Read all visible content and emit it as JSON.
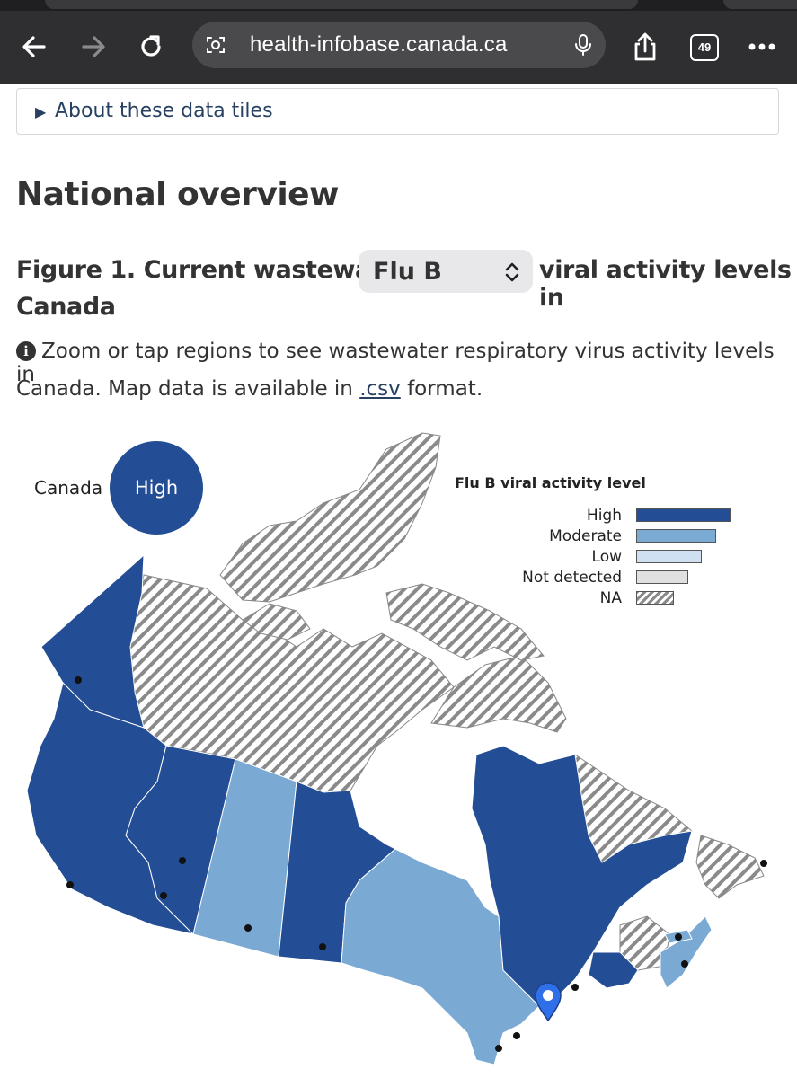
{
  "browser": {
    "url": "health-infobase.canada.ca",
    "tab_count": "49",
    "icons": [
      "back-arrow-icon",
      "forward-arrow-icon",
      "reload-icon",
      "site-settings-icon",
      "microphone-icon",
      "share-icon",
      "tabs-icon",
      "more-icon"
    ]
  },
  "details_toggle": {
    "label": "About these data tiles"
  },
  "heading": "National overview",
  "figure": {
    "title_prefix": "Figure 1. Current wastewater",
    "selected_virus": "Flu B",
    "title_suffix_1": "viral activity levels in",
    "title_suffix_2": "Canada",
    "info_text_1": "Zoom or tap regions to see wastewater respiratory virus activity levels in",
    "info_text_2_before": "Canada. Map data is available in ",
    "info_link": ".csv",
    "info_text_2_after": " format."
  },
  "map": {
    "national": {
      "label": "Canada",
      "level": "High"
    },
    "legend": {
      "title": "Flu B viral activity level",
      "items": [
        {
          "label": "High",
          "color": "#234e96"
        },
        {
          "label": "Moderate",
          "color": "#7aaad3"
        },
        {
          "label": "Low",
          "color": "#cfe0f3"
        },
        {
          "label": "Not detected",
          "color": "#e0e0e0"
        },
        {
          "label": "NA",
          "color": "hatch"
        }
      ]
    },
    "regions": [
      {
        "name": "Yukon",
        "level": "High"
      },
      {
        "name": "British Columbia",
        "level": "High"
      },
      {
        "name": "Alberta",
        "level": "High"
      },
      {
        "name": "Saskatchewan",
        "level": "Moderate"
      },
      {
        "name": "Manitoba",
        "level": "High"
      },
      {
        "name": "Ontario",
        "level": "Moderate"
      },
      {
        "name": "Quebec",
        "level": "High"
      },
      {
        "name": "New Brunswick",
        "level": "High"
      },
      {
        "name": "Nova Scotia",
        "level": "Moderate"
      },
      {
        "name": "Prince Edward Island",
        "level": "Moderate"
      },
      {
        "name": "Northwest Territories",
        "level": "NA"
      },
      {
        "name": "Nunavut",
        "level": "NA"
      },
      {
        "name": "Newfoundland and Labrador",
        "level": "NA"
      }
    ],
    "colors": {
      "high": "#234e96",
      "moderate": "#7aaad3",
      "hatch": "#8a8a8a",
      "site_dot": "#111111",
      "marker": "#2f6fe8"
    }
  }
}
